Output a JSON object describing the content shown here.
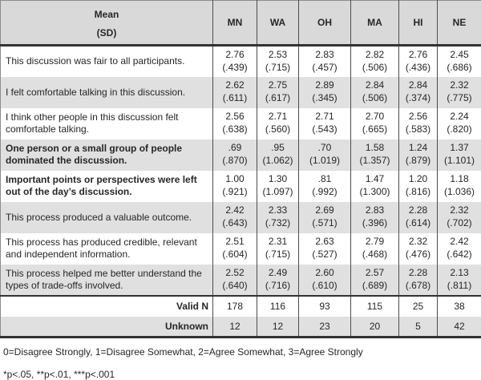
{
  "table": {
    "header": {
      "mean_label": "Mean",
      "sd_label": "(SD)",
      "columns": [
        "MN",
        "WA",
        "OH",
        "MA",
        "HI",
        "NE"
      ]
    },
    "rows": [
      {
        "label": "This discussion was fair to all participants.",
        "bold": false,
        "means": [
          "2.76",
          "2.53",
          "2.83",
          "2.82",
          "2.76",
          "2.45"
        ],
        "sds": [
          "(.439)",
          "(.715)",
          "(.457)",
          "(.506)",
          "(.436)",
          "(.686)"
        ]
      },
      {
        "label": "I felt comfortable talking in this discussion.",
        "bold": false,
        "means": [
          "2.62",
          "2.75",
          "2.89",
          "2.84",
          "2.84",
          "2.32"
        ],
        "sds": [
          "(.611)",
          "(.617)",
          "(.345)",
          "(.506)",
          "(.374)",
          "(.775)"
        ]
      },
      {
        "label": "I think other people in this discussion felt comfortable talking.",
        "bold": false,
        "means": [
          "2.56",
          "2.71",
          "2.71",
          "2.70",
          "2.56",
          "2.24"
        ],
        "sds": [
          "(.638)",
          "(.560)",
          "(.543)",
          "(.665)",
          "(.583)",
          "(.820)"
        ]
      },
      {
        "label": "One person or a small group of people dominated the discussion.",
        "bold": true,
        "means": [
          ".69",
          ".95",
          ".70",
          "1.58",
          "1.24",
          "1.37"
        ],
        "sds": [
          "(.870)",
          "(1.062)",
          "(1.019)",
          "(1.357)",
          "(.879)",
          "(1.101)"
        ]
      },
      {
        "label": "Important points or perspectives were left out of the day’s discussion.",
        "bold": true,
        "means": [
          "1.00",
          "1.30",
          ".81",
          "1.47",
          "1.20",
          "1.18"
        ],
        "sds": [
          "(.921)",
          "(1.097)",
          "(.992)",
          "(1.300)",
          "(.816)",
          "(1.036)"
        ]
      },
      {
        "label": "This process produced a valuable outcome.",
        "bold": false,
        "means": [
          "2.42",
          "2.33",
          "2.69",
          "2.83",
          "2.28",
          "2.32"
        ],
        "sds": [
          "(.643)",
          "(.732)",
          "(.571)",
          "(.396)",
          "(.614)",
          "(.702)"
        ]
      },
      {
        "label": "This process has produced credible, relevant and independent information.",
        "bold": false,
        "means": [
          "2.51",
          "2.31",
          "2.63",
          "2.79",
          "2.32",
          "2.42"
        ],
        "sds": [
          "(.604)",
          "(.715)",
          "(.527)",
          "(.468)",
          "(.476)",
          "(.642)"
        ]
      },
      {
        "label": "This process helped me better understand the types of trade-offs involved.",
        "bold": false,
        "means": [
          "2.52",
          "2.49",
          "2.60",
          "2.57",
          "2.28",
          "2.13"
        ],
        "sds": [
          "(.640)",
          "(.716)",
          "(.610)",
          "(.689)",
          "(.678)",
          "(.811)"
        ]
      }
    ],
    "summary_rows": [
      {
        "label": "Valid N",
        "values": [
          "178",
          "116",
          "93",
          "115",
          "25",
          "38"
        ]
      },
      {
        "label": "Unknown",
        "values": [
          "12",
          "12",
          "23",
          "20",
          "5",
          "42"
        ]
      }
    ],
    "footnotes": [
      "0=Disagree Strongly, 1=Disagree Somewhat, 2=Agree Somewhat, 3=Agree Strongly",
      "*p<.05, **p<.01, ***p<.001"
    ],
    "colors": {
      "header_bg": "#d9d9d9",
      "stripe_bg": "#e0e0e0",
      "thick_border": "#333333",
      "grid_line": "#4d4d4d",
      "text": "#262626"
    }
  }
}
